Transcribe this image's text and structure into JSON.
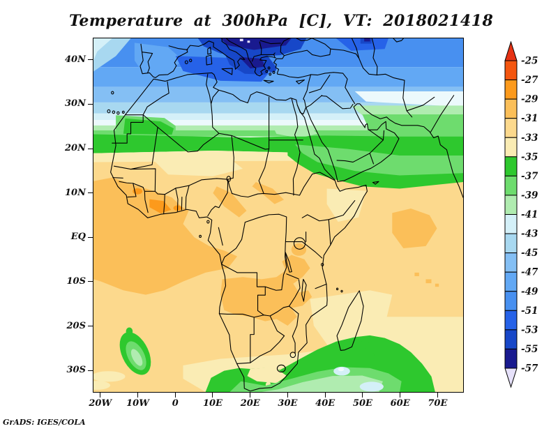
{
  "title": "Temperature at 300hPa [C], VT: 2018021418",
  "credit": "GrADS: IGES/COLA",
  "axes": {
    "extent": {
      "lon_min": -22,
      "lon_max": 77,
      "lat_min": -35,
      "lat_max": 45
    },
    "lat_ticks": [
      {
        "label": "40N",
        "value": 40
      },
      {
        "label": "30N",
        "value": 30
      },
      {
        "label": "20N",
        "value": 20
      },
      {
        "label": "10N",
        "value": 10
      },
      {
        "label": "EQ",
        "value": 0
      },
      {
        "label": "10S",
        "value": -10
      },
      {
        "label": "20S",
        "value": -20
      },
      {
        "label": "30S",
        "value": -30
      }
    ],
    "lon_ticks": [
      {
        "label": "20W",
        "value": -20
      },
      {
        "label": "10W",
        "value": -10
      },
      {
        "label": "0",
        "value": 0
      },
      {
        "label": "10E",
        "value": 10
      },
      {
        "label": "20E",
        "value": 20
      },
      {
        "label": "30E",
        "value": 30
      },
      {
        "label": "40E",
        "value": 40
      },
      {
        "label": "50E",
        "value": 50
      },
      {
        "label": "60E",
        "value": 60
      },
      {
        "label": "70E",
        "value": 70
      }
    ]
  },
  "colorbar": {
    "labels": [
      "-25",
      "-27",
      "-29",
      "-31",
      "-33",
      "-35",
      "-37",
      "-39",
      "-41",
      "-43",
      "-45",
      "-47",
      "-49",
      "-51",
      "-53",
      "-55",
      "-57"
    ],
    "segment_colors": [
      "#f4560f",
      "#fc9a1c",
      "#fbbf59",
      "#fcd98d",
      "#faecb4",
      "#2ec82e",
      "#6edc6e",
      "#b0ecb0",
      "#d4f0f8",
      "#a8d8f0",
      "#84bff4",
      "#62a8f4",
      "#4890f0",
      "#2662e8",
      "#1747c8",
      "#191a8f"
    ],
    "over_color": "#e63214",
    "under_color": "#e6e1fa"
  },
  "chart_data": {
    "type": "heatmap",
    "title": "Temperature at 300hPa [C], VT: 2018021418",
    "variable": "temperature",
    "level_hpa": 300,
    "units": "C",
    "valid_time": "2018021418",
    "source_credit": "GrADS: IGES/COLA",
    "region": {
      "lon_min": -22,
      "lon_max": 77,
      "lat_min": -35,
      "lat_max": 45
    },
    "contour_interval": 2,
    "contour_levels": [
      -57,
      -55,
      -53,
      -51,
      -49,
      -47,
      -45,
      -43,
      -41,
      -39,
      -37,
      -35,
      -33,
      -31,
      -29,
      -27,
      -25
    ],
    "palette_warm_to_cold": [
      "#f4560f",
      "#fc9a1c",
      "#fbbf59",
      "#fcd98d",
      "#faecb4",
      "#2ec82e",
      "#6edc6e",
      "#b0ecb0",
      "#d4f0f8",
      "#a8d8f0",
      "#84bff4",
      "#62a8f4",
      "#4890f0",
      "#2662e8",
      "#1747c8",
      "#191a8f"
    ],
    "legend_position": "right",
    "sampled_values": [
      {
        "lon": -20,
        "lat": 43,
        "t_c": -44
      },
      {
        "lon": -8,
        "lat": 40,
        "t_c": -48
      },
      {
        "lon": 20,
        "lat": 44,
        "t_c": -56
      },
      {
        "lon": 20,
        "lat": 38,
        "t_c": -54
      },
      {
        "lon": 35,
        "lat": 43,
        "t_c": -52
      },
      {
        "lon": 50,
        "lat": 44,
        "t_c": -53
      },
      {
        "lon": 70,
        "lat": 42,
        "t_c": -50
      },
      {
        "lon": 10,
        "lat": 33,
        "t_c": -47
      },
      {
        "lon": 30,
        "lat": 31,
        "t_c": -45
      },
      {
        "lon": 0,
        "lat": 26,
        "t_c": -42
      },
      {
        "lon": 60,
        "lat": 30,
        "t_c": -41
      },
      {
        "lon": -10,
        "lat": 25,
        "t_c": -37
      },
      {
        "lon": 10,
        "lat": 21,
        "t_c": -36
      },
      {
        "lon": 40,
        "lat": 18,
        "t_c": -36
      },
      {
        "lon": 60,
        "lat": 25,
        "t_c": -38
      },
      {
        "lon": 70,
        "lat": 17,
        "t_c": -36
      },
      {
        "lon": 0,
        "lat": 15,
        "t_c": -32
      },
      {
        "lon": -20,
        "lat": 5,
        "t_c": -30
      },
      {
        "lon": -4,
        "lat": 7,
        "t_c": -28
      },
      {
        "lon": 15,
        "lat": -2,
        "t_c": -30
      },
      {
        "lon": 25,
        "lat": 5,
        "t_c": -32
      },
      {
        "lon": 45,
        "lat": 7,
        "t_c": -34
      },
      {
        "lon": 63,
        "lat": 2,
        "t_c": -30
      },
      {
        "lon": 25,
        "lat": -14,
        "t_c": -30
      },
      {
        "lon": 45,
        "lat": -20,
        "t_c": -34
      },
      {
        "lon": -11,
        "lat": -27,
        "t_c": -38
      },
      {
        "lon": 20,
        "lat": -25,
        "t_c": -32
      },
      {
        "lon": 25,
        "lat": -31,
        "t_c": -34
      },
      {
        "lon": 30,
        "lat": -33,
        "t_c": -37
      },
      {
        "lon": 45,
        "lat": -31,
        "t_c": -39
      },
      {
        "lon": 53,
        "lat": -34,
        "t_c": -42
      },
      {
        "lon": 70,
        "lat": -20,
        "t_c": -32
      }
    ]
  }
}
